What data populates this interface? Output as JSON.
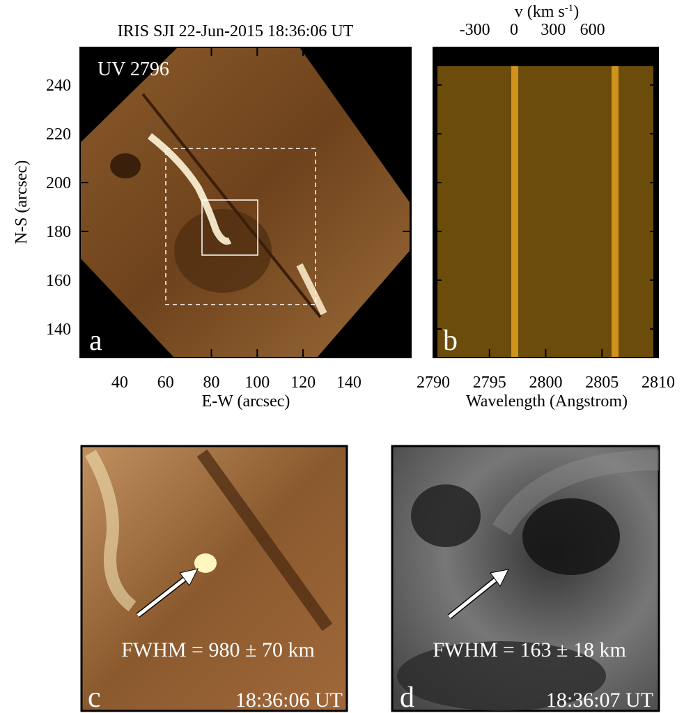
{
  "panel_a": {
    "title": "IRIS SJI 22-Jun-2015 18:36:06 UT",
    "label": "UV 2796",
    "letter": "a",
    "xlabel": "E-W (arcsec)",
    "ylabel": "N-S (arcsec)",
    "xlim": [
      22.7,
      167.1
    ],
    "xticks": [
      40,
      60,
      80,
      100,
      120,
      140
    ],
    "ylim": [
      128.3,
      255.4
    ],
    "yticks": [
      140,
      160,
      180,
      200,
      220,
      240
    ]
  },
  "panel_b": {
    "letter": "b",
    "xlabel": "Wavelength (Angstrom)",
    "xlim": [
      2790,
      2810
    ],
    "xticks": [
      2790,
      2795,
      2800,
      2805,
      2810
    ],
    "top_xlabel": {
      "text": "v (km s",
      "sup": "-1",
      "end": ")"
    },
    "top_xlim": [
      -618,
      1103
    ],
    "top_xticks": [
      -300,
      0,
      300,
      600
    ]
  },
  "panel_c": {
    "letter": "c",
    "fwhm": "FWHM = 980  ± 70 km",
    "time": "18:36:06 UT"
  },
  "panel_d": {
    "letter": "d",
    "fwhm": "FWHM = 163  ± 18 km",
    "time": "18:36:07 UT"
  }
}
